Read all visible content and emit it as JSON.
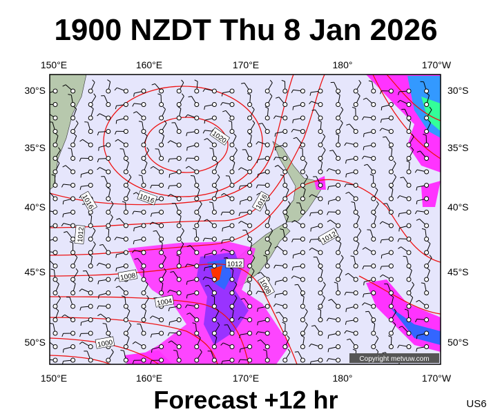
{
  "header": {
    "title": "1900 NZDT Thu 8 Jan 2026"
  },
  "footer": {
    "subtitle": "Forecast +12 hr",
    "code": "US6"
  },
  "map": {
    "lon_labels": [
      "150°E",
      "160°E",
      "170°E",
      "180°",
      "170°W"
    ],
    "lat_labels": [
      "30°S",
      "35°S",
      "40°S",
      "45°S",
      "50°S"
    ],
    "isobar_labels": [
      "1020",
      "1016",
      "1016",
      "1016",
      "1012",
      "1012",
      "1012",
      "1008",
      "1008",
      "1004",
      "1000"
    ],
    "copyright": "Copyright metvuw.com"
  }
}
